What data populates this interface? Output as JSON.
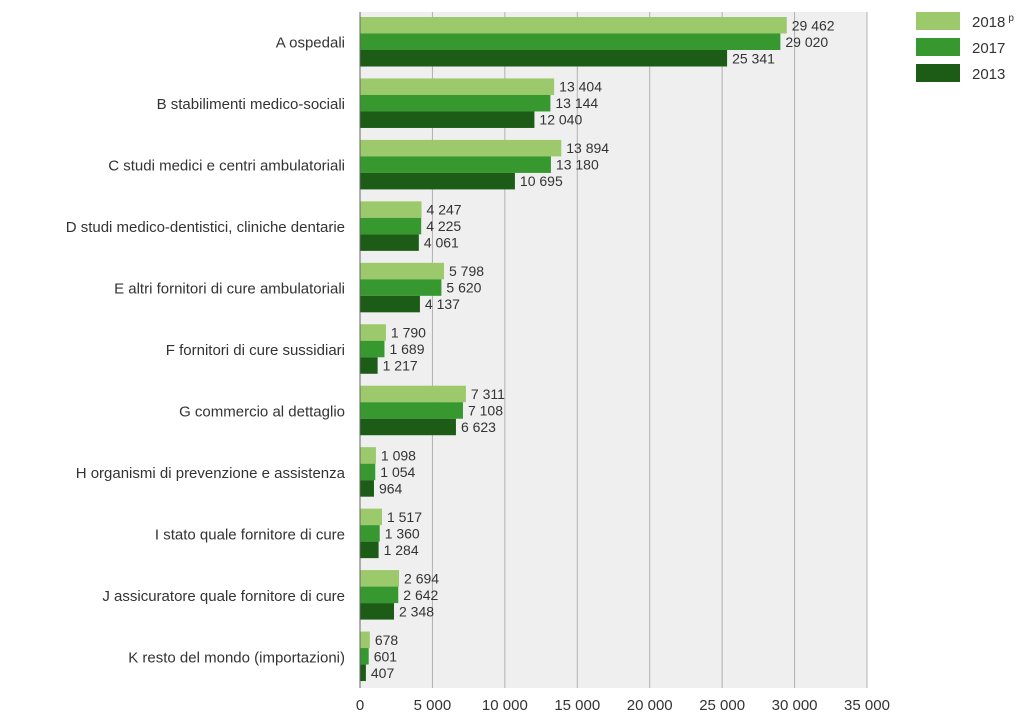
{
  "chart_data": {
    "type": "bar",
    "orientation": "horizontal",
    "categories": [
      "A ospedali",
      "B stabilimenti medico-sociali",
      "C studi medici e centri ambulatoriali",
      "D studi medico-dentistici, cliniche dentarie",
      "E altri fornitori di cure ambulatoriali",
      "F fornitori di cure sussidiari",
      "G commercio al dettaglio",
      "H organismi di prevenzione e assistenza",
      "I stato quale fornitore di cure",
      "J assicuratore quale fornitore di cure",
      "K resto del mondo (importazioni)"
    ],
    "series": [
      {
        "name": "2018",
        "name_superscript": "p",
        "color": "#9cc96b",
        "values": [
          29462,
          13404,
          13894,
          4247,
          5798,
          1790,
          7311,
          1098,
          1517,
          2694,
          678
        ],
        "labels": [
          "29 462",
          "13 404",
          "13 894",
          "4 247",
          "5 798",
          "1 790",
          "7 311",
          "1 098",
          "1 517",
          "2 694",
          "678"
        ]
      },
      {
        "name": "2017",
        "color": "#36982f",
        "values": [
          29020,
          13144,
          13180,
          4225,
          5620,
          1689,
          7108,
          1054,
          1360,
          2642,
          601
        ],
        "labels": [
          "29 020",
          "13 144",
          "13 180",
          "4 225",
          "5 620",
          "1 689",
          "7 108",
          "1 054",
          "1 360",
          "2 642",
          "601"
        ]
      },
      {
        "name": "2013",
        "color": "#1c5c17",
        "values": [
          25341,
          12040,
          10695,
          4061,
          4137,
          1217,
          6623,
          964,
          1284,
          2348,
          407
        ],
        "labels": [
          "25 341",
          "12 040",
          "10 695",
          "4 061",
          "4 137",
          "1 217",
          "6 623",
          "964",
          "1 284",
          "2 348",
          "407"
        ]
      }
    ],
    "xlim": [
      0,
      35000
    ],
    "xticks": [
      0,
      5000,
      10000,
      15000,
      20000,
      25000,
      30000,
      35000
    ],
    "xtick_labels": [
      "0",
      "5 000",
      "10 000",
      "15 000",
      "20 000",
      "25 000",
      "30 000",
      "35 000"
    ],
    "grid": true,
    "plot_background": "#efefef",
    "legend_position": "top-right",
    "title": "",
    "xlabel": "",
    "ylabel": ""
  }
}
